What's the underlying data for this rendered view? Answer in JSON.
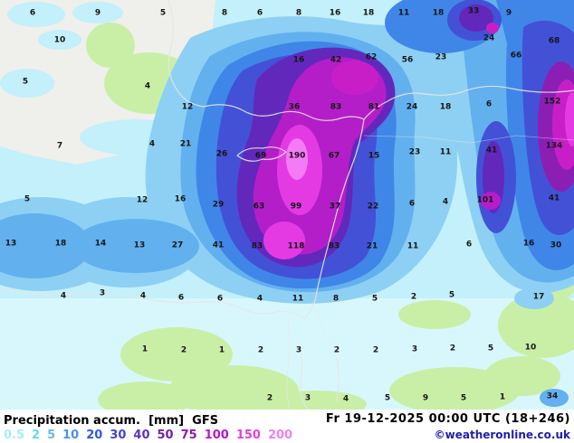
{
  "info_bar": {
    "product": "Precipitation accum.",
    "unit": "[mm]",
    "model": "GFS",
    "datetime": "Fr 19-12-2025 00:00 UTC (18+246)",
    "copyright": "©weatheronline.co.uk"
  },
  "legend": {
    "values": [
      "0.5",
      "2",
      "5",
      "10",
      "20",
      "30",
      "40",
      "50",
      "75",
      "100",
      "150",
      "200"
    ],
    "colors": [
      "#a8ecf6",
      "#5fdcee",
      "#66b8f0",
      "#4890f0",
      "#3058e8",
      "#3f46d2",
      "#6030c8",
      "#7020b0",
      "#9018b8",
      "#b818c8",
      "#e040e0",
      "#f080f0"
    ]
  },
  "map": {
    "palette": {
      "sea_no_precip": "#efefec",
      "land_no_precip": "#c9efa7",
      "base_light": "#c3f0fa",
      "coastline": "#e6e6e6"
    },
    "values": [
      [
        36,
        14,
        "6"
      ],
      [
        108,
        14,
        "9"
      ],
      [
        180,
        14,
        "5"
      ],
      [
        248,
        14,
        "8"
      ],
      [
        287,
        14,
        "6"
      ],
      [
        330,
        14,
        "8"
      ],
      [
        370,
        14,
        "16"
      ],
      [
        407,
        14,
        "18"
      ],
      [
        446,
        14,
        "11"
      ],
      [
        484,
        14,
        "18"
      ],
      [
        523,
        12,
        "33"
      ],
      [
        562,
        14,
        "9"
      ],
      [
        66,
        44,
        "10"
      ],
      [
        540,
        42,
        "24"
      ],
      [
        612,
        45,
        "68"
      ],
      [
        330,
        66,
        "16"
      ],
      [
        371,
        66,
        "42"
      ],
      [
        410,
        63,
        "62"
      ],
      [
        450,
        66,
        "56"
      ],
      [
        487,
        63,
        "23"
      ],
      [
        570,
        61,
        "66"
      ],
      [
        28,
        90,
        "5"
      ],
      [
        163,
        95,
        "4"
      ],
      [
        207,
        118,
        "12"
      ],
      [
        325,
        118,
        "36"
      ],
      [
        371,
        118,
        "83"
      ],
      [
        413,
        118,
        "81"
      ],
      [
        455,
        118,
        "24"
      ],
      [
        492,
        118,
        "18"
      ],
      [
        540,
        115,
        "6"
      ],
      [
        610,
        112,
        "152"
      ],
      [
        66,
        161,
        "7"
      ],
      [
        168,
        159,
        "4"
      ],
      [
        205,
        159,
        "21"
      ],
      [
        245,
        170,
        "26"
      ],
      [
        288,
        172,
        "69"
      ],
      [
        328,
        172,
        "190"
      ],
      [
        369,
        172,
        "67"
      ],
      [
        413,
        172,
        "15"
      ],
      [
        458,
        168,
        "23"
      ],
      [
        492,
        168,
        "11"
      ],
      [
        543,
        166,
        "41"
      ],
      [
        612,
        161,
        "134"
      ],
      [
        30,
        220,
        "5"
      ],
      [
        157,
        221,
        "12"
      ],
      [
        199,
        220,
        "16"
      ],
      [
        241,
        226,
        "29"
      ],
      [
        286,
        228,
        "63"
      ],
      [
        327,
        228,
        "99"
      ],
      [
        370,
        228,
        "37"
      ],
      [
        412,
        228,
        "22"
      ],
      [
        455,
        225,
        "6"
      ],
      [
        492,
        223,
        "4"
      ],
      [
        536,
        221,
        "101"
      ],
      [
        612,
        219,
        "41"
      ],
      [
        12,
        269,
        "13"
      ],
      [
        67,
        269,
        "18"
      ],
      [
        111,
        269,
        "14"
      ],
      [
        154,
        271,
        "13"
      ],
      [
        196,
        271,
        "27"
      ],
      [
        241,
        271,
        "41"
      ],
      [
        284,
        272,
        "83"
      ],
      [
        327,
        272,
        "118"
      ],
      [
        369,
        272,
        "83"
      ],
      [
        411,
        272,
        "21"
      ],
      [
        456,
        272,
        "11"
      ],
      [
        518,
        270,
        "6"
      ],
      [
        584,
        269,
        "16"
      ],
      [
        614,
        271,
        "30"
      ],
      [
        70,
        327,
        "4"
      ],
      [
        113,
        324,
        "3"
      ],
      [
        158,
        327,
        "4"
      ],
      [
        200,
        329,
        "6"
      ],
      [
        243,
        330,
        "6"
      ],
      [
        287,
        330,
        "4"
      ],
      [
        329,
        330,
        "11"
      ],
      [
        371,
        330,
        "8"
      ],
      [
        414,
        330,
        "5"
      ],
      [
        457,
        328,
        "2"
      ],
      [
        499,
        326,
        "5"
      ],
      [
        595,
        328,
        "17"
      ],
      [
        160,
        386,
        "1"
      ],
      [
        203,
        387,
        "2"
      ],
      [
        245,
        387,
        "1"
      ],
      [
        288,
        387,
        "2"
      ],
      [
        330,
        387,
        "3"
      ],
      [
        372,
        387,
        "2"
      ],
      [
        415,
        387,
        "2"
      ],
      [
        458,
        386,
        "3"
      ],
      [
        500,
        385,
        "2"
      ],
      [
        542,
        385,
        "5"
      ],
      [
        586,
        384,
        "10"
      ],
      [
        298,
        440,
        "2"
      ],
      [
        340,
        440,
        "3"
      ],
      [
        382,
        441,
        "4"
      ],
      [
        428,
        440,
        "5"
      ],
      [
        470,
        440,
        "9"
      ],
      [
        512,
        440,
        "5"
      ],
      [
        555,
        439,
        "1"
      ],
      [
        610,
        438,
        "34"
      ]
    ]
  }
}
